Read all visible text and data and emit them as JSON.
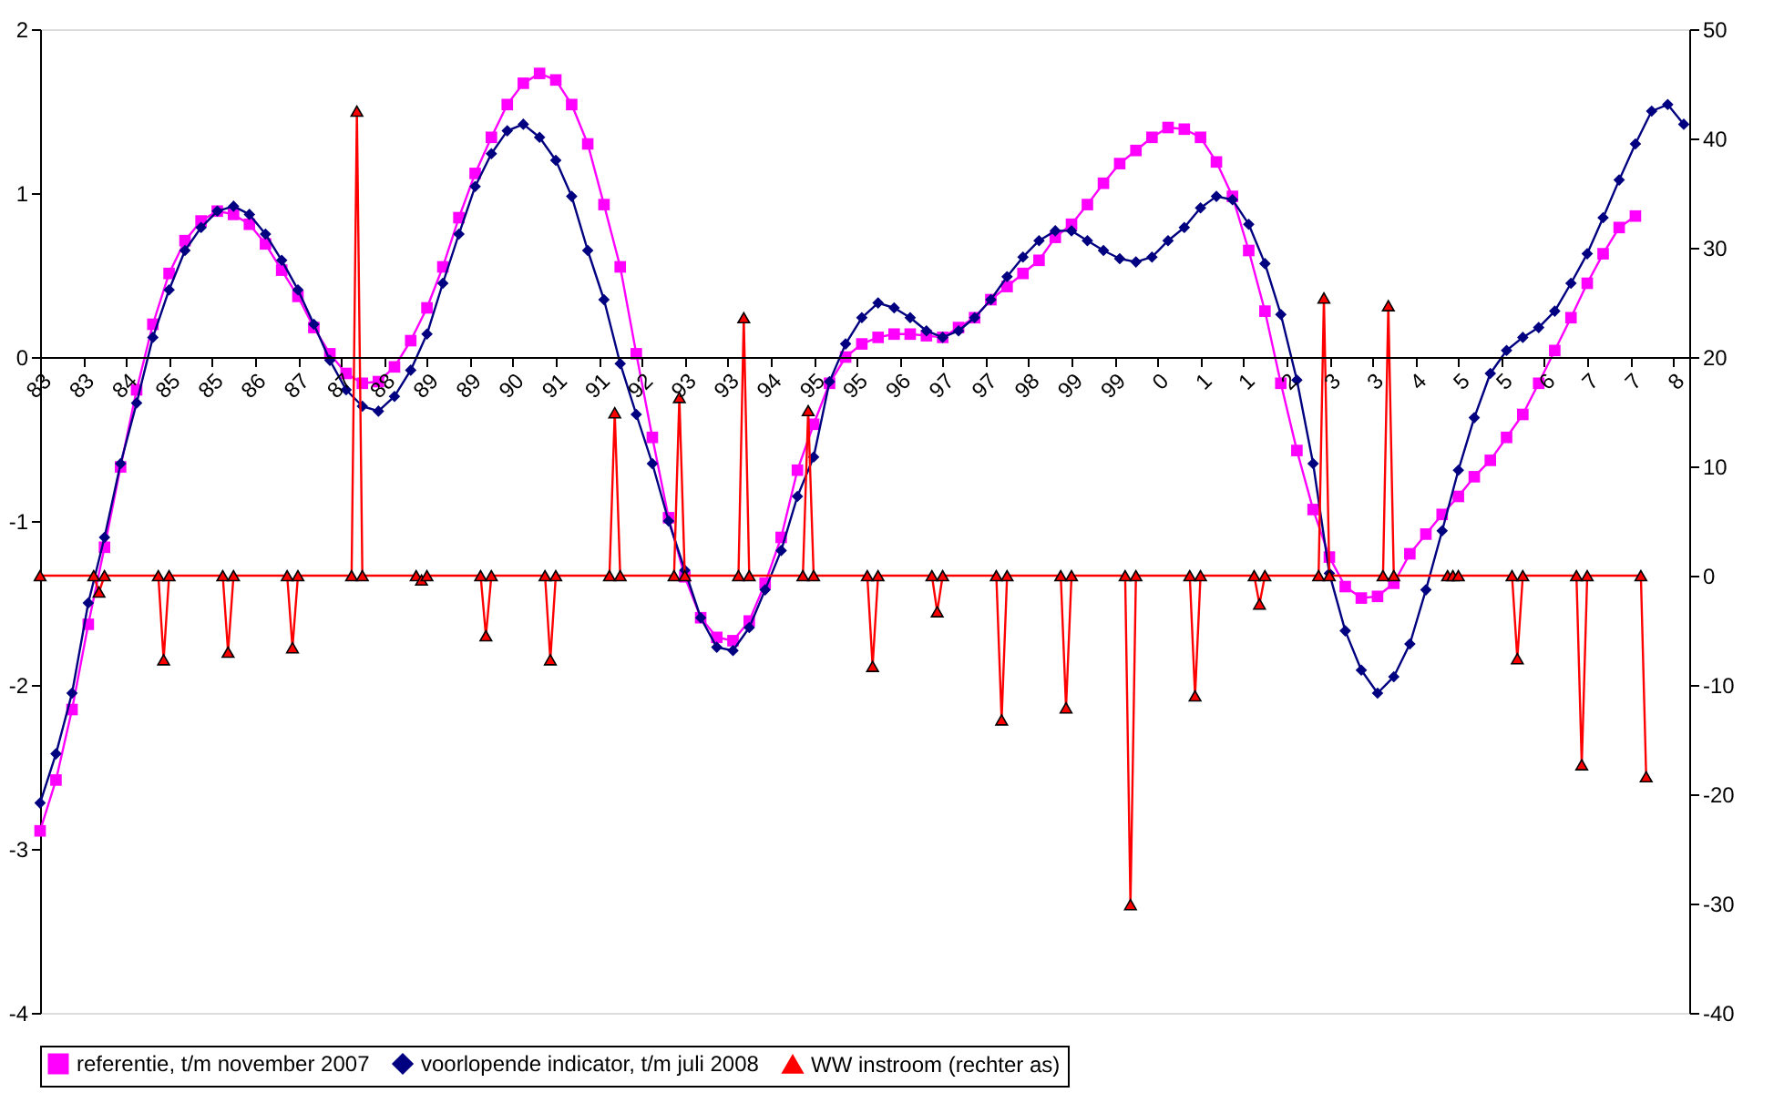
{
  "chart_data": {
    "type": "line",
    "x": [
      "1983-01",
      "1983-04",
      "1983-07",
      "1983-10",
      "1984-01",
      "1984-04",
      "1984-07",
      "1984-10",
      "1985-01",
      "1985-04",
      "1985-07",
      "1985-10",
      "1986-01",
      "1986-04",
      "1986-07",
      "1986-10",
      "1987-01",
      "1987-04",
      "1987-07",
      "1987-10",
      "1988-01",
      "1988-04",
      "1988-07",
      "1988-10",
      "1989-01",
      "1989-04",
      "1989-07",
      "1989-10",
      "1990-01",
      "1990-04",
      "1990-07",
      "1990-10",
      "1991-01",
      "1991-04",
      "1991-07",
      "1991-10",
      "1992-01",
      "1992-04",
      "1992-07",
      "1992-10",
      "1993-01",
      "1993-04",
      "1993-07",
      "1993-10",
      "1994-01",
      "1994-04",
      "1994-07",
      "1994-10",
      "1995-01",
      "1995-04",
      "1995-07",
      "1995-10",
      "1996-01",
      "1996-04",
      "1996-07",
      "1996-10",
      "1997-01",
      "1997-04",
      "1997-07",
      "1997-10",
      "1998-01",
      "1998-04",
      "1998-07",
      "1998-10",
      "1999-01",
      "1999-04",
      "1999-07",
      "1999-10",
      "2000-01",
      "2000-04",
      "2000-07",
      "2000-10",
      "2001-01",
      "2001-04",
      "2001-07",
      "2001-10",
      "2002-01",
      "2002-04",
      "2002-07",
      "2002-10",
      "2003-01",
      "2003-04",
      "2003-07",
      "2003-10",
      "2004-01",
      "2004-04",
      "2004-07",
      "2004-10",
      "2005-01",
      "2005-04",
      "2005-07",
      "2005-10",
      "2006-01",
      "2006-04",
      "2006-07",
      "2006-10",
      "2007-01",
      "2007-04",
      "2007-07",
      "2007-10",
      "2008-01",
      "2008-04",
      "2008-07"
    ],
    "series": [
      {
        "name": "referentie, t/m november 2007",
        "color": "#ff00ff",
        "marker": "square",
        "values": [
          -2.89,
          -2.58,
          -2.15,
          -1.63,
          -1.16,
          -0.67,
          -0.2,
          0.2,
          0.51,
          0.71,
          0.83,
          0.89,
          0.87,
          0.81,
          0.69,
          0.53,
          0.37,
          0.18,
          0.02,
          -0.1,
          -0.16,
          -0.15,
          -0.06,
          0.1,
          0.3,
          0.55,
          0.85,
          1.12,
          1.34,
          1.54,
          1.67,
          1.73,
          1.69,
          1.54,
          1.3,
          0.93,
          0.55,
          0.02,
          -0.49,
          -0.98,
          -1.34,
          -1.59,
          -1.71,
          -1.73,
          -1.61,
          -1.38,
          -1.1,
          -0.69,
          -0.41,
          -0.16,
          0.0,
          0.08,
          0.12,
          0.14,
          0.14,
          0.13,
          0.12,
          0.18,
          0.24,
          0.35,
          0.43,
          0.51,
          0.59,
          0.73,
          0.81,
          0.93,
          1.06,
          1.18,
          1.26,
          1.34,
          1.4,
          1.39,
          1.34,
          1.19,
          0.98,
          0.65,
          0.28,
          -0.16,
          -0.57,
          -0.93,
          -1.22,
          -1.4,
          -1.47,
          -1.46,
          -1.38,
          -1.2,
          -1.08,
          -0.96,
          -0.85,
          -0.73,
          -0.63,
          -0.49,
          -0.35,
          -0.16,
          0.04,
          0.24,
          0.45,
          0.63,
          0.79,
          0.86,
          null,
          null,
          null
        ]
      },
      {
        "name": "voorlopende indicator, t/m juli 2008",
        "color": "#000080",
        "marker": "diamond",
        "values": [
          -2.72,
          -2.42,
          -2.05,
          -1.5,
          -1.1,
          -0.65,
          -0.28,
          0.12,
          0.41,
          0.65,
          0.79,
          0.89,
          0.92,
          0.87,
          0.75,
          0.59,
          0.41,
          0.2,
          -0.02,
          -0.2,
          -0.3,
          -0.33,
          -0.24,
          -0.08,
          0.14,
          0.45,
          0.75,
          1.04,
          1.24,
          1.38,
          1.42,
          1.34,
          1.2,
          0.98,
          0.65,
          0.35,
          -0.04,
          -0.35,
          -0.65,
          -1.0,
          -1.3,
          -1.59,
          -1.77,
          -1.79,
          -1.65,
          -1.42,
          -1.18,
          -0.85,
          -0.61,
          -0.15,
          0.08,
          0.24,
          0.33,
          0.3,
          0.24,
          0.16,
          0.12,
          0.16,
          0.24,
          0.35,
          0.49,
          0.61,
          0.71,
          0.77,
          0.77,
          0.71,
          0.65,
          0.6,
          0.58,
          0.61,
          0.71,
          0.79,
          0.91,
          0.98,
          0.96,
          0.81,
          0.57,
          0.26,
          -0.14,
          -0.65,
          -1.32,
          -1.67,
          -1.91,
          -2.05,
          -1.95,
          -1.75,
          -1.42,
          -1.06,
          -0.69,
          -0.37,
          -0.1,
          0.04,
          0.12,
          0.18,
          0.28,
          0.45,
          0.63,
          0.85,
          1.08,
          1.3,
          1.5,
          1.54,
          1.42
        ]
      },
      {
        "name": "WW instroom (rechter as)",
        "color": "#ff0000",
        "marker": "triangle",
        "axis": "y2",
        "x": [
          "1983-01",
          "1983-11",
          "1983-12",
          "1984-01",
          "1984-11",
          "1984-12",
          "1985-01",
          "1985-11",
          "1985-12",
          "1986-01",
          "1986-11",
          "1986-12",
          "1987-01",
          "1987-11",
          "1987-12",
          "1988-01",
          "1988-11",
          "1988-12",
          "1989-01",
          "1989-11",
          "1989-12",
          "1990-01",
          "1990-11",
          "1990-12",
          "1991-01",
          "1991-11",
          "1991-12",
          "1992-01",
          "1992-11",
          "1992-12",
          "1993-01",
          "1993-11",
          "1993-12",
          "1994-01",
          "1994-11",
          "1994-12",
          "1995-01",
          "1995-11",
          "1995-12",
          "1996-01",
          "1996-11",
          "1996-12",
          "1997-01",
          "1997-11",
          "1997-12",
          "1998-01",
          "1998-11",
          "1998-12",
          "1999-01",
          "1999-11",
          "1999-12",
          "2000-01",
          "2000-11",
          "2000-12",
          "2001-01",
          "2001-11",
          "2001-12",
          "2002-01",
          "2002-11",
          "2002-12",
          "2003-01",
          "2003-11",
          "2003-12",
          "2004-01",
          "2004-11",
          "2004-12",
          "2005-01",
          "2005-11",
          "2005-12",
          "2006-01",
          "2006-11",
          "2006-12",
          "2007-01",
          "2007-11",
          "2007-12"
        ],
        "values": [
          0,
          0,
          -1.5,
          0,
          0,
          -7.7,
          0,
          0,
          -7.0,
          0,
          0,
          -6.6,
          0,
          0,
          42.5,
          0,
          0,
          -0.4,
          0,
          0,
          -5.5,
          0,
          0,
          -7.7,
          0,
          0,
          14.9,
          0,
          0,
          16.3,
          0,
          0,
          23.6,
          0,
          0,
          15.1,
          0,
          0,
          -8.3,
          0,
          0,
          -3.3,
          0,
          0,
          -13.2,
          0,
          0,
          -12.1,
          0,
          0,
          -30.1,
          0,
          0,
          -11.0,
          0,
          0,
          -2.6,
          0,
          0,
          25.4,
          0,
          0,
          24.7,
          0,
          0,
          0,
          0,
          0,
          -7.6,
          0,
          0,
          -17.3,
          0,
          0,
          -18.4
        ]
      }
    ],
    "xlim": [
      "1983-01",
      "2008-08"
    ],
    "xticks": [
      {
        "value": "1983-01",
        "label": "83"
      },
      {
        "value": "1983-09",
        "label": "83"
      },
      {
        "value": "1984-05",
        "label": "84"
      },
      {
        "value": "1985-01",
        "label": "85"
      },
      {
        "value": "1985-09",
        "label": "85"
      },
      {
        "value": "1986-05",
        "label": "86"
      },
      {
        "value": "1987-01",
        "label": "87"
      },
      {
        "value": "1987-09",
        "label": "87"
      },
      {
        "value": "1988-05",
        "label": "88"
      },
      {
        "value": "1989-01",
        "label": "89"
      },
      {
        "value": "1989-09",
        "label": "89"
      },
      {
        "value": "1990-05",
        "label": "90"
      },
      {
        "value": "1991-01",
        "label": "91"
      },
      {
        "value": "1991-09",
        "label": "91"
      },
      {
        "value": "1992-05",
        "label": "92"
      },
      {
        "value": "1993-01",
        "label": "93"
      },
      {
        "value": "1993-09",
        "label": "93"
      },
      {
        "value": "1994-05",
        "label": "94"
      },
      {
        "value": "1995-01",
        "label": "95"
      },
      {
        "value": "1995-09",
        "label": "95"
      },
      {
        "value": "1996-05",
        "label": "96"
      },
      {
        "value": "1997-01",
        "label": "97"
      },
      {
        "value": "1997-09",
        "label": "97"
      },
      {
        "value": "1998-05",
        "label": "98"
      },
      {
        "value": "1999-01",
        "label": "99"
      },
      {
        "value": "1999-09",
        "label": "99"
      },
      {
        "value": "2000-05",
        "label": "0"
      },
      {
        "value": "2001-01",
        "label": "1"
      },
      {
        "value": "2001-09",
        "label": "1"
      },
      {
        "value": "2002-05",
        "label": "2"
      },
      {
        "value": "2003-01",
        "label": "3"
      },
      {
        "value": "2003-09",
        "label": "3"
      },
      {
        "value": "2004-05",
        "label": "4"
      },
      {
        "value": "2005-01",
        "label": "5"
      },
      {
        "value": "2005-09",
        "label": "5"
      },
      {
        "value": "2006-05",
        "label": "6"
      },
      {
        "value": "2007-01",
        "label": "7"
      },
      {
        "value": "2007-09",
        "label": "7"
      },
      {
        "value": "2008-05",
        "label": "8"
      }
    ],
    "ylim": [
      -4,
      2
    ],
    "yticks": [
      -4,
      -3,
      -2,
      -1,
      0,
      1,
      2
    ],
    "y2lim": [
      -40,
      50
    ],
    "y2ticks": [
      -40,
      -30,
      -20,
      -10,
      0,
      10,
      20,
      30,
      40,
      50
    ],
    "legend": "bottom"
  }
}
